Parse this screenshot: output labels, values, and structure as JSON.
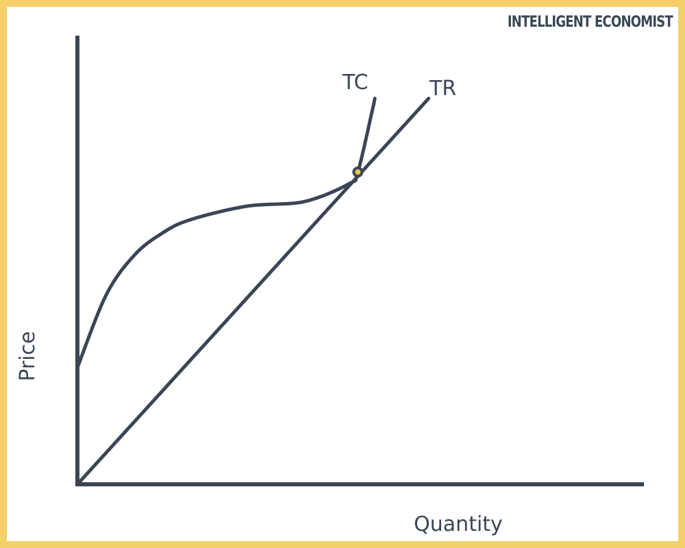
{
  "brand": {
    "text": "INTELLIGENT ECONOMIST",
    "color": "#3a4656"
  },
  "colors": {
    "border": "#f5cf67",
    "ink": "#3a4656",
    "marker_fill": "#f2c744"
  },
  "chart_data": {
    "type": "line",
    "xlabel": "Quantity",
    "ylabel": "Price",
    "xlim": [
      0,
      100
    ],
    "ylim": [
      0,
      100
    ],
    "grid": false,
    "ticks": false,
    "series": [
      {
        "name": "TC",
        "shape": "cubic",
        "points": [
          [
            0,
            26
          ],
          [
            5,
            42
          ],
          [
            10,
            51
          ],
          [
            15,
            56
          ],
          [
            20,
            59
          ],
          [
            30,
            62
          ],
          [
            40,
            63
          ],
          [
            48,
            67
          ],
          [
            49.5,
            69.6
          ],
          [
            52,
            83
          ],
          [
            52.5,
            86
          ]
        ]
      },
      {
        "name": "TR",
        "shape": "linear",
        "points": [
          [
            0,
            0
          ],
          [
            62,
            86
          ]
        ]
      }
    ],
    "annotations": [
      {
        "type": "point",
        "label": "",
        "x": 49.5,
        "y": 69.6
      }
    ]
  }
}
